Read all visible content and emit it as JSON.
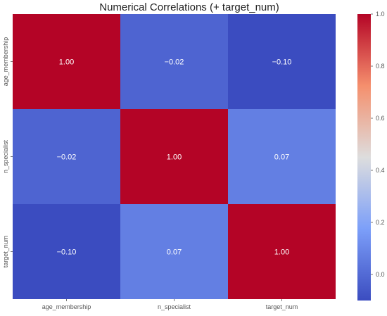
{
  "chart_data": {
    "type": "heatmap",
    "title": "Numerical Correlations (+ target_num)",
    "x_labels": [
      "age_membership",
      "n_specialist",
      "target_num"
    ],
    "y_labels": [
      "age_membership",
      "n_specialist",
      "target_num"
    ],
    "values": [
      [
        1.0,
        -0.02,
        -0.1
      ],
      [
        -0.02,
        1.0,
        0.07
      ],
      [
        -0.1,
        0.07,
        1.0
      ]
    ],
    "value_labels": [
      [
        "1.00",
        "−0.02",
        "−0.10"
      ],
      [
        "−0.02",
        "1.00",
        "0.07"
      ],
      [
        "−0.10",
        "0.07",
        "1.00"
      ]
    ],
    "colorbar": {
      "vmin": -0.1,
      "vmax": 1.0,
      "ticks": [
        0.0,
        0.2,
        0.4,
        0.6,
        0.8,
        1.0
      ],
      "tick_labels": [
        "0.0",
        "0.2",
        "0.4",
        "0.6",
        "0.8",
        "1.0"
      ]
    },
    "colormap": "coolwarm",
    "annotations": true,
    "grid": false
  }
}
